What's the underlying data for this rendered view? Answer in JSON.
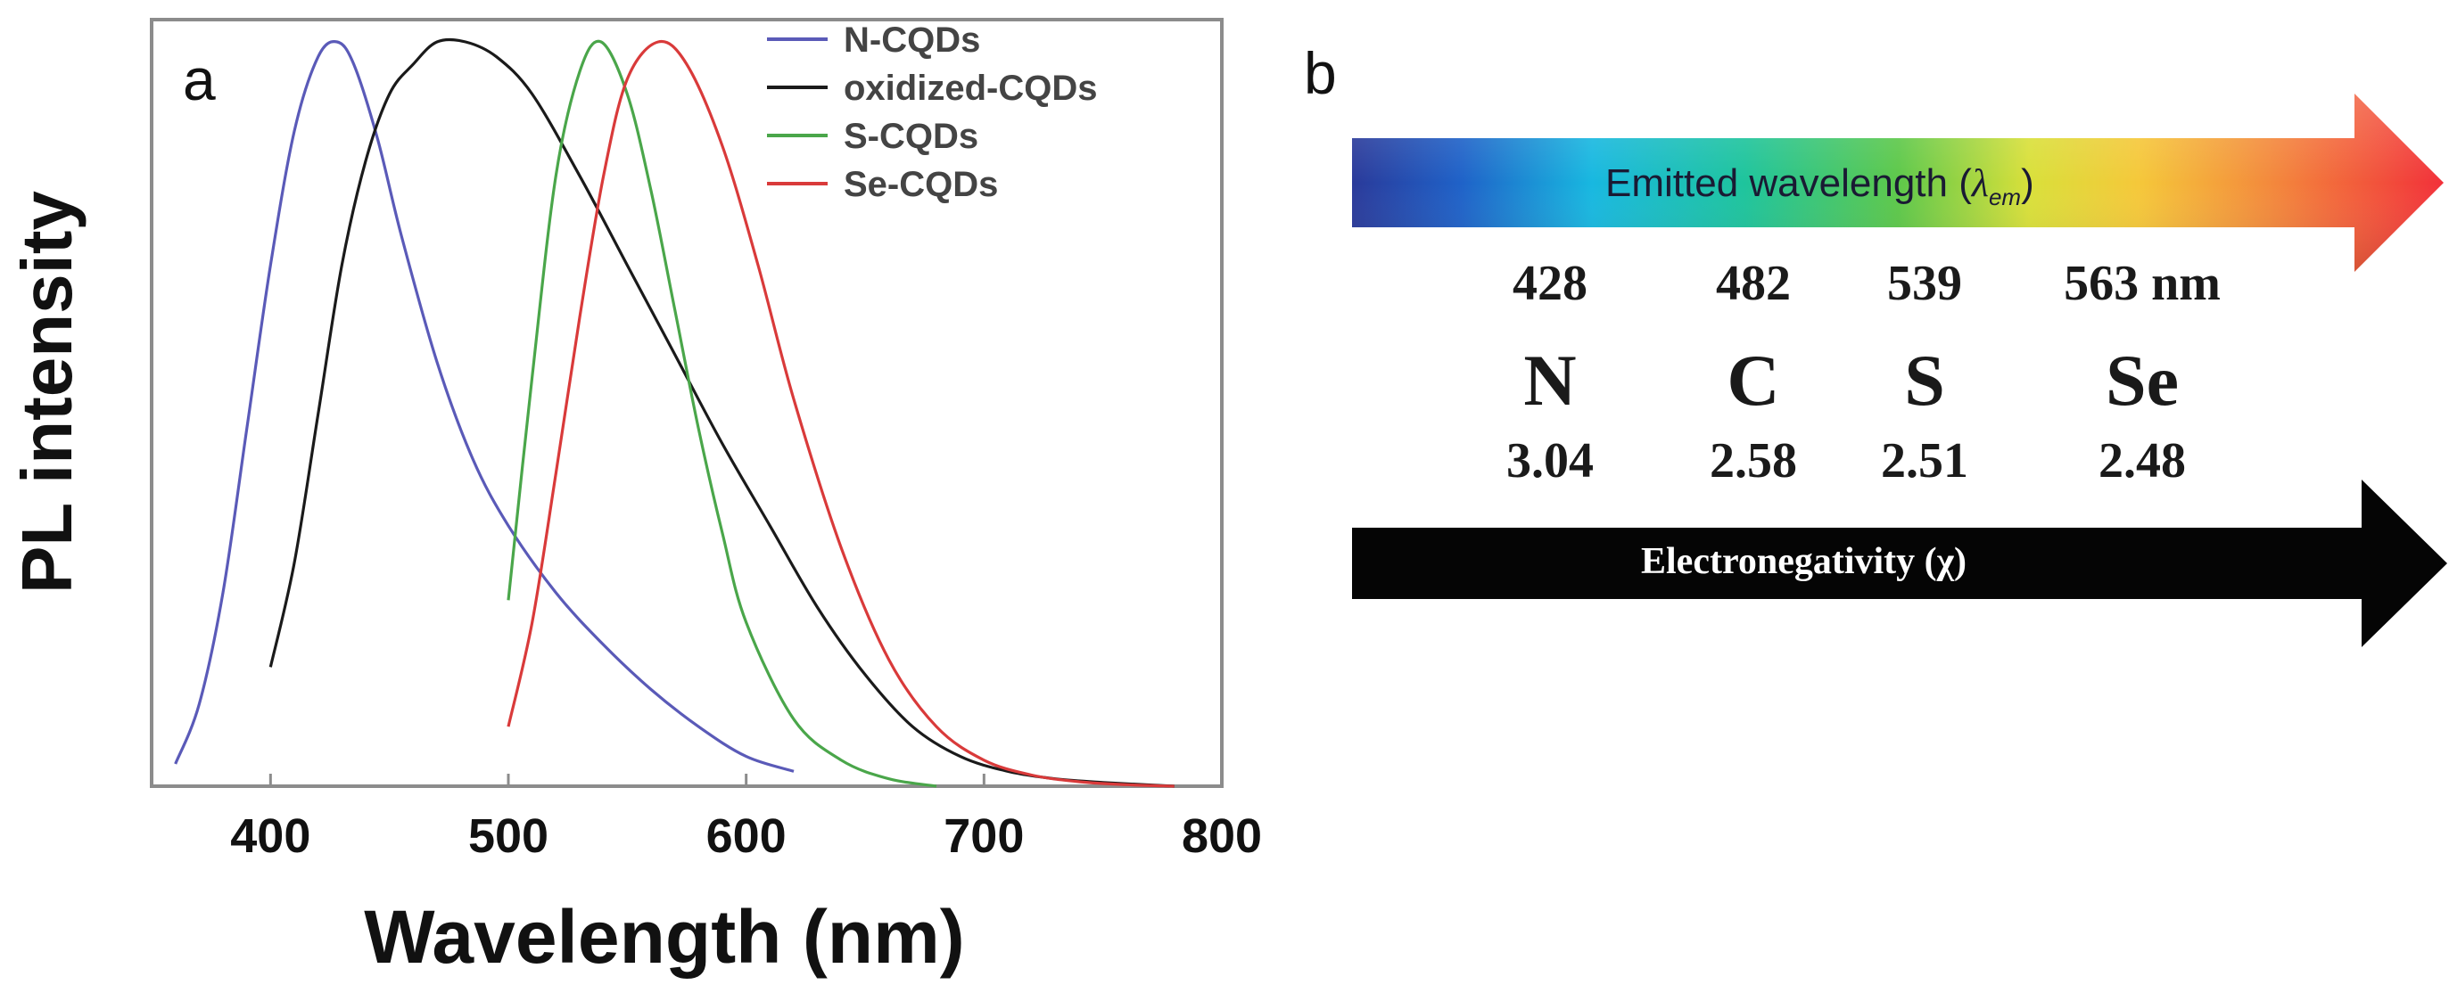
{
  "chart_data": {
    "type": "line",
    "panel_label": "a",
    "xlabel": "Wavelength (nm)",
    "ylabel": "PL intensity",
    "xlim": [
      350,
      800
    ],
    "ylim": [
      0,
      1.03
    ],
    "x_ticks": [
      400,
      500,
      600,
      700,
      800
    ],
    "grid": false,
    "legend_position": "top-right",
    "series": [
      {
        "name": "N-CQDs",
        "color": "#5a5ab8",
        "peak": 428,
        "x": [
          360,
          370,
          380,
          390,
          400,
          410,
          420,
          428,
          435,
          445,
          455,
          470,
          485,
          500,
          520,
          540,
          560,
          580,
          600,
          620
        ],
        "y": [
          0.03,
          0.11,
          0.26,
          0.48,
          0.7,
          0.88,
          0.98,
          1.0,
          0.97,
          0.87,
          0.74,
          0.57,
          0.44,
          0.35,
          0.26,
          0.19,
          0.13,
          0.08,
          0.04,
          0.02
        ]
      },
      {
        "name": "oxidized-CQDs",
        "color": "#1a1a1a",
        "peak": 482,
        "x": [
          400,
          410,
          420,
          430,
          440,
          450,
          460,
          470,
          482,
          495,
          510,
          530,
          550,
          570,
          590,
          610,
          630,
          650,
          670,
          690,
          710,
          730,
          750,
          780
        ],
        "y": [
          0.16,
          0.3,
          0.5,
          0.7,
          0.84,
          0.93,
          0.97,
          1.0,
          1.0,
          0.98,
          0.93,
          0.82,
          0.7,
          0.58,
          0.46,
          0.35,
          0.24,
          0.15,
          0.08,
          0.04,
          0.02,
          0.01,
          0.005,
          0.0
        ]
      },
      {
        "name": "S-CQDs",
        "color": "#4aa64a",
        "peak": 539,
        "x": [
          500,
          510,
          520,
          530,
          539,
          550,
          560,
          570,
          580,
          590,
          600,
          620,
          640,
          660,
          680
        ],
        "y": [
          0.25,
          0.55,
          0.82,
          0.96,
          1.0,
          0.93,
          0.8,
          0.64,
          0.48,
          0.34,
          0.22,
          0.09,
          0.035,
          0.01,
          0.0
        ]
      },
      {
        "name": "Se-CQDs",
        "color": "#d93a3a",
        "peak": 563,
        "x": [
          500,
          510,
          520,
          530,
          540,
          550,
          563,
          575,
          590,
          605,
          620,
          640,
          660,
          680,
          700,
          720,
          740,
          760,
          780
        ],
        "y": [
          0.08,
          0.22,
          0.42,
          0.63,
          0.82,
          0.95,
          1.0,
          0.97,
          0.86,
          0.7,
          0.52,
          0.32,
          0.17,
          0.08,
          0.035,
          0.015,
          0.006,
          0.002,
          0.0
        ]
      }
    ]
  },
  "panel_b": {
    "label": "b",
    "emission_arrow": {
      "label_text": "Emitted wavelength (",
      "symbol": "λ",
      "subscript": "em",
      "label_close": ")"
    },
    "wavelengths": [
      "428",
      "482",
      "539",
      "563 nm"
    ],
    "elements": [
      "N",
      "C",
      "S",
      "Se"
    ],
    "electronegativity": [
      "3.04",
      "2.58",
      "2.51",
      "2.48"
    ],
    "electronegativity_arrow": {
      "label": "Electronegativity  (χ)"
    }
  }
}
